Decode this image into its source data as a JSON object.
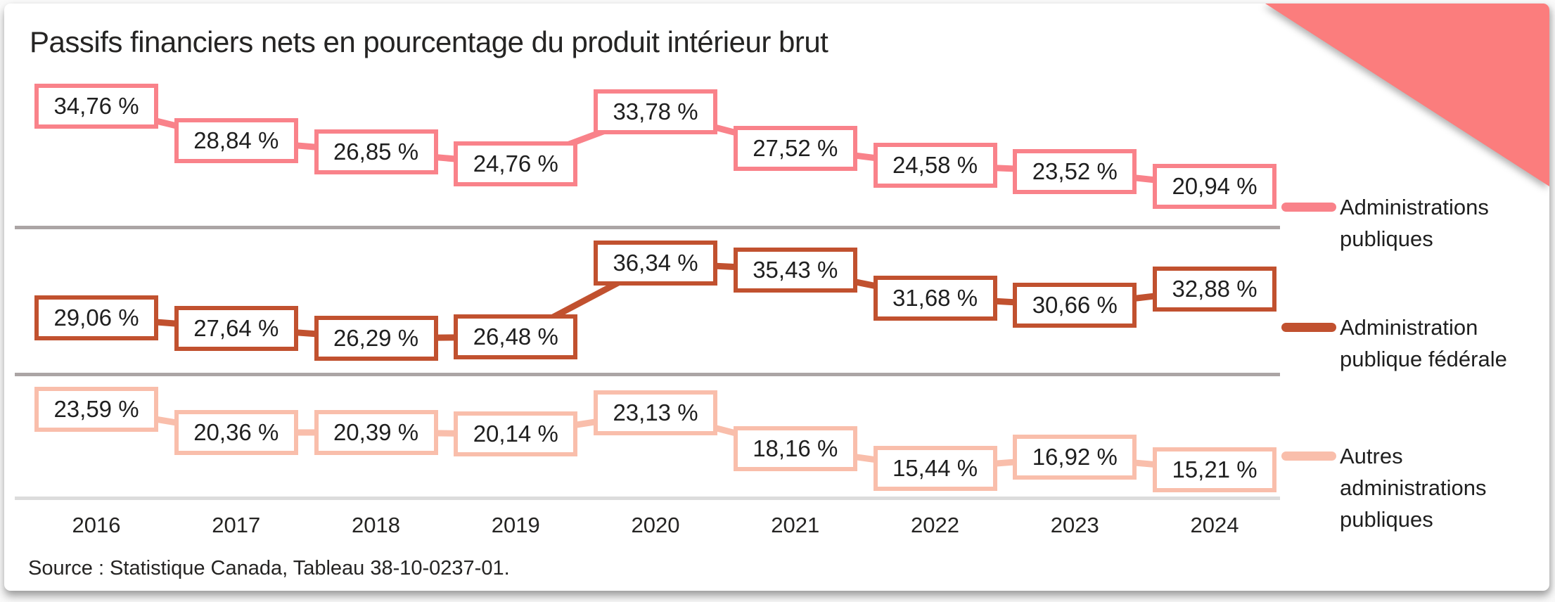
{
  "title": "Passifs financiers nets en pourcentage du produit intérieur brut",
  "source": "Source : Statistique Canada, Tableau 38-10-0237-01.",
  "colors": {
    "corner_accent": "#FB7D7D",
    "separator": "#ABA5A5",
    "axis_line": "#DCDCDC",
    "title_text": "#252423",
    "label_text": "#1F1F1F"
  },
  "chart_data": {
    "type": "line",
    "title": "Passifs financiers nets en pourcentage du produit intérieur brut",
    "xlabel": "",
    "ylabel": "",
    "value_suffix": " %",
    "decimal_separator": ",",
    "grid": false,
    "legend_position": "right",
    "layout": "three stacked panels, one per series, separated by horizontal rules",
    "categories": [
      "2016",
      "2017",
      "2018",
      "2019",
      "2020",
      "2021",
      "2022",
      "2023",
      "2024"
    ],
    "series": [
      {
        "name": "Administrations publiques",
        "color": "#F9828A",
        "values": [
          34.76,
          28.84,
          26.85,
          24.76,
          33.78,
          27.52,
          24.58,
          23.52,
          20.94
        ],
        "labels": [
          "34,76 %",
          "28,84 %",
          "26,85 %",
          "24,76 %",
          "33,78 %",
          "27,52 %",
          "24,58 %",
          "23,52 %",
          "20,94 %"
        ]
      },
      {
        "name": "Administration publique fédérale",
        "color": "#C1512F",
        "values": [
          29.06,
          27.64,
          26.29,
          26.48,
          36.34,
          35.43,
          31.68,
          30.66,
          32.88
        ],
        "labels": [
          "29,06 %",
          "27,64 %",
          "26,29 %",
          "26,48 %",
          "36,34 %",
          "35,43 %",
          "31,68 %",
          "30,66 %",
          "32,88 %"
        ]
      },
      {
        "name": "Autres administrations publiques",
        "color": "#F9BEAB",
        "values": [
          23.59,
          20.36,
          20.39,
          20.14,
          23.13,
          18.16,
          15.44,
          16.92,
          15.21
        ],
        "labels": [
          "23,59 %",
          "20,36 %",
          "20,39 %",
          "20,14 %",
          "23,13 %",
          "18,16 %",
          "15,44 %",
          "16,92 %",
          "15,21 %"
        ]
      }
    ]
  }
}
